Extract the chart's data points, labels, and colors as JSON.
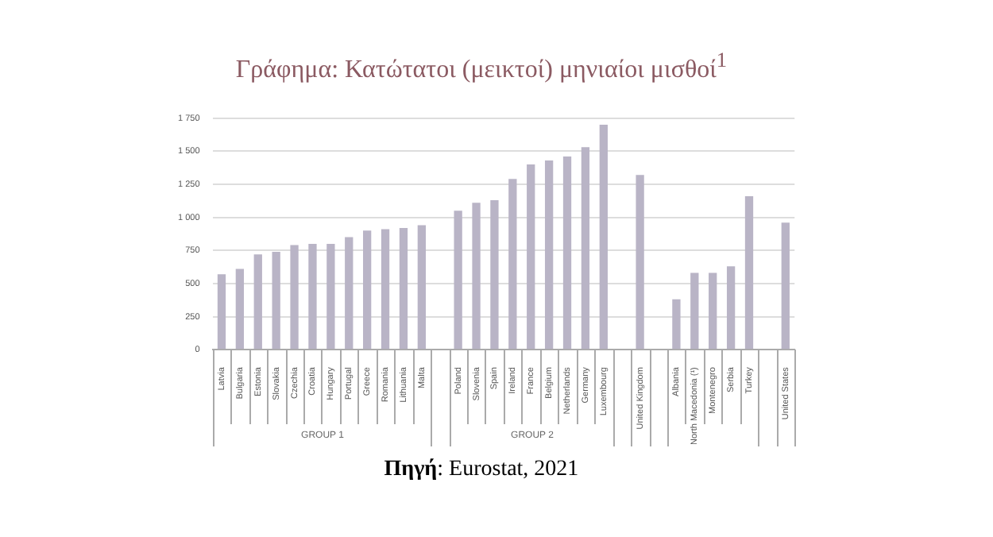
{
  "chart_data": {
    "type": "bar",
    "title": "Γράφημα: Κατώτατοι (μεικτοί) μηνιαίοι μισθοί$^{1}$",
    "categories": [
      "Latvia",
      "Bulgaria",
      "Estonia",
      "Slovakia",
      "Czechia",
      "Croatia",
      "Hungary",
      "Portugal",
      "Greece",
      "Romania",
      "Lithuania",
      "Malta",
      null,
      "Poland",
      "Slovenia",
      "Spain",
      "Ireland",
      "France",
      "Belgium",
      "Netherlands",
      "Germany",
      "Luxembourg",
      null,
      "United Kingdom",
      null,
      "Albania",
      "North Macedonia (¹)",
      "Montenegro",
      "Serbia",
      "Turkey",
      null,
      "United States"
    ],
    "values": [
      570,
      610,
      720,
      740,
      790,
      800,
      800,
      850,
      900,
      910,
      920,
      940,
      null,
      1050,
      1110,
      1130,
      1290,
      1400,
      1430,
      1460,
      1530,
      1700,
      null,
      1320,
      null,
      380,
      580,
      580,
      630,
      1160,
      null,
      960
    ],
    "color": "#b9b4c6",
    "ylim": [
      0,
      1750
    ],
    "yticks": [
      0,
      250,
      500,
      750,
      {
        "value": 1000,
        "label": "1 000"
      },
      {
        "value": 1250,
        "label": "1 250"
      },
      {
        "value": 1500,
        "label": "1 500"
      },
      {
        "value": 1750,
        "label": "1 750"
      }
    ],
    "grid": "y",
    "annotations": [
      "GROUP 1",
      "GROUP 2",
      "Πηγή: Eurostat, 2021"
    ]
  }
}
